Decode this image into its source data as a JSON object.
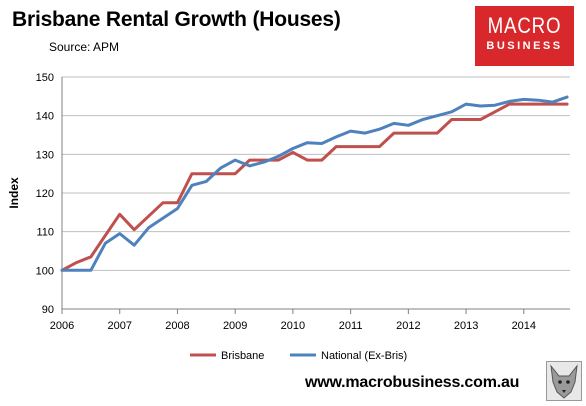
{
  "header": {
    "title": "Brisbane Rental Growth (Houses)",
    "subtitle": "Source: APM"
  },
  "logo": {
    "line1": "MACRO",
    "line2": "BUSINESS"
  },
  "footer": {
    "site": "www.macrobusiness.com.au"
  },
  "colors": {
    "brisbane": "#c0504d",
    "national": "#4f81bd",
    "logo_bg": "#d8282b"
  },
  "chart_data": {
    "type": "line",
    "title": "Brisbane Rental Growth (Houses)",
    "ylabel": "Index",
    "xlabel": "",
    "ylim": [
      90,
      150
    ],
    "yticks": [
      90,
      100,
      110,
      120,
      130,
      140,
      150
    ],
    "xlim": [
      2006,
      2014.8
    ],
    "xticks": [
      2006,
      2007,
      2008,
      2009,
      2010,
      2011,
      2012,
      2013,
      2014
    ],
    "grid": true,
    "legend_position": "bottom",
    "series": [
      {
        "name": "Brisbane",
        "color": "#c0504d",
        "x": [
          2006,
          2006.25,
          2006.5,
          2006.75,
          2007,
          2007.25,
          2007.5,
          2007.75,
          2008,
          2008.25,
          2008.5,
          2008.75,
          2009,
          2009.25,
          2009.5,
          2009.75,
          2010,
          2010.25,
          2010.5,
          2010.75,
          2011,
          2011.25,
          2011.5,
          2011.75,
          2012,
          2012.25,
          2012.5,
          2012.75,
          2013,
          2013.25,
          2013.5,
          2013.75,
          2014,
          2014.25,
          2014.5,
          2014.75
        ],
        "y": [
          100,
          102,
          103.5,
          109,
          114.5,
          110.5,
          114,
          117.5,
          117.5,
          125,
          125,
          125,
          125,
          128.5,
          128.5,
          128.5,
          130.5,
          128.5,
          128.5,
          132,
          132,
          132,
          132,
          135.5,
          135.5,
          135.5,
          135.5,
          139,
          139,
          139,
          141,
          143,
          143,
          143,
          143,
          143
        ]
      },
      {
        "name": "National (Ex-Bris)",
        "color": "#4f81bd",
        "x": [
          2006,
          2006.25,
          2006.5,
          2006.75,
          2007,
          2007.25,
          2007.5,
          2007.75,
          2008,
          2008.25,
          2008.5,
          2008.75,
          2009,
          2009.25,
          2009.5,
          2009.75,
          2010,
          2010.25,
          2010.5,
          2010.75,
          2011,
          2011.25,
          2011.5,
          2011.75,
          2012,
          2012.25,
          2012.5,
          2012.75,
          2013,
          2013.25,
          2013.5,
          2013.75,
          2014,
          2014.25,
          2014.5,
          2014.75
        ],
        "y": [
          100,
          100,
          100,
          107,
          109.5,
          106.5,
          111,
          113.5,
          116,
          122,
          123,
          126.5,
          128.5,
          127,
          128,
          129.5,
          131.5,
          133,
          132.8,
          134.5,
          136,
          135.5,
          136.5,
          138,
          137.5,
          139,
          140,
          141,
          143,
          142.5,
          142.7,
          143.7,
          144.2,
          144,
          143.5,
          144.8
        ]
      }
    ]
  }
}
